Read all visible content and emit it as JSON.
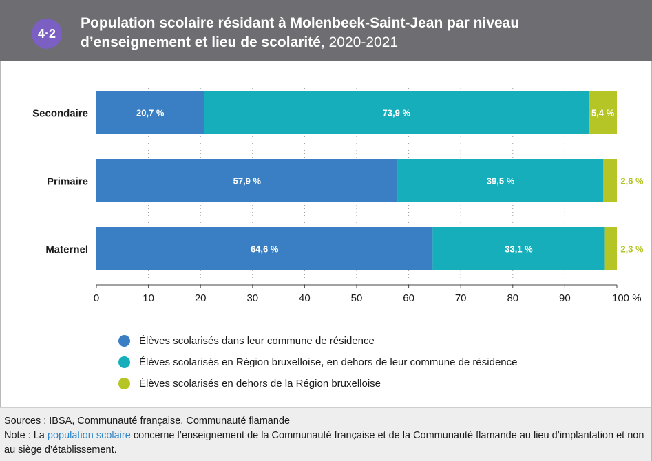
{
  "header": {
    "badge": "4·2",
    "title_bold": "Population scolaire résidant à Molenbeek-Saint-Jean par niveau d’enseignement et lieu de scolarité",
    "title_year": ", 2020-2021"
  },
  "chart_data": {
    "type": "bar",
    "orientation": "horizontal",
    "stacked": true,
    "categories": [
      "Secondaire",
      "Primaire",
      "Maternel"
    ],
    "series": [
      {
        "name": "Élèves scolarisés dans leur commune de résidence",
        "values": [
          20.7,
          57.9,
          64.6
        ],
        "labels": [
          "20,7 %",
          "57,9 %",
          "64,6 %"
        ],
        "color": "#3a7fc4"
      },
      {
        "name": "Élèves scolarisés en Région bruxelloise, en dehors de leur commune de résidence",
        "values": [
          73.9,
          39.5,
          33.1
        ],
        "labels": [
          "73,9 %",
          "39,5 %",
          "33,1 %"
        ],
        "color": "#17aebb"
      },
      {
        "name": "Élèves scolarisés en dehors de la Région bruxelloise",
        "values": [
          5.4,
          2.6,
          2.3
        ],
        "labels": [
          "5,4 %",
          "2,6 %",
          "2,3 %"
        ],
        "color": "#b5c526"
      }
    ],
    "xlim": [
      0,
      100
    ],
    "xticks": [
      0,
      10,
      20,
      30,
      40,
      50,
      60,
      70,
      80,
      90,
      100
    ],
    "xtick_labels": [
      "0",
      "10",
      "20",
      "30",
      "40",
      "50",
      "60",
      "70",
      "80",
      "90",
      "100 %"
    ],
    "grid": "vertical dotted",
    "legend_position": "bottom"
  },
  "footer": {
    "sources": "Sources : IBSA, Communauté française, Communauté flamande",
    "note_prefix": "Note : La ",
    "note_link": "population scolaire",
    "note_rest": " concerne l’enseignement de la Communauté française et de la Communauté flamande au lieu d’implantation et non au siège d’établissement."
  }
}
